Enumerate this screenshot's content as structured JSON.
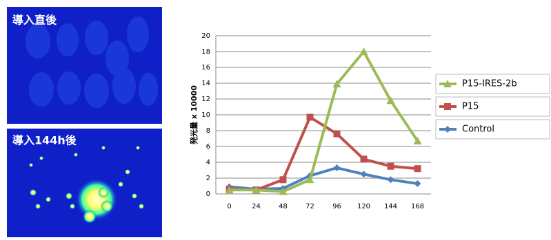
{
  "images": [
    {
      "label": "導入直後"
    },
    {
      "label": "導入144h後"
    }
  ],
  "chart_data": {
    "type": "line",
    "categories": [
      "0",
      "24",
      "48",
      "72",
      "96",
      "120",
      "144",
      "168"
    ],
    "y_label": "発光量 x 10000",
    "ylim": [
      0,
      20
    ],
    "yticks": [
      0,
      2,
      4,
      6,
      8,
      10,
      12,
      14,
      16,
      18,
      20
    ],
    "grid": true,
    "series": [
      {
        "name": "P15-IRES-2b",
        "color": "#9bbb59",
        "marker": "triangle",
        "values": [
          0.5,
          0.5,
          0.3,
          1.8,
          13.9,
          18,
          11.8,
          6.7
        ]
      },
      {
        "name": "P15",
        "color": "#c0504d",
        "marker": "square",
        "values": [
          0.6,
          0.5,
          1.8,
          9.7,
          7.6,
          4.4,
          3.5,
          3.2
        ]
      },
      {
        "name": "Control",
        "color": "#4f81bd",
        "marker": "diamond",
        "values": [
          0.9,
          0.6,
          0.7,
          2.3,
          3.3,
          2.5,
          1.8,
          1.3
        ]
      }
    ]
  }
}
